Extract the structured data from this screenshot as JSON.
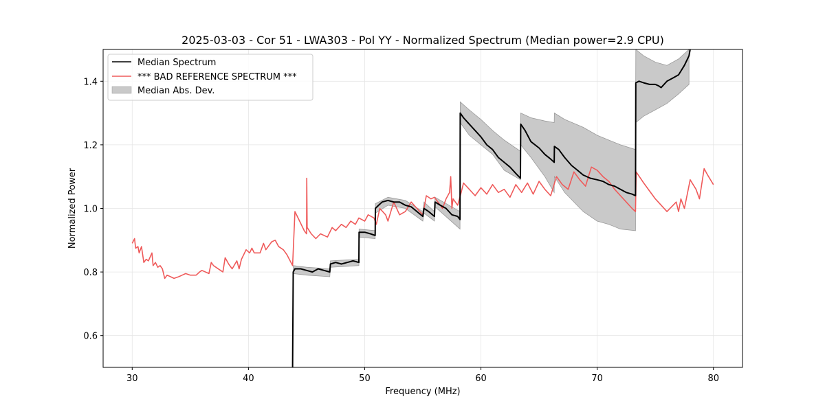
{
  "chart_data": {
    "type": "line",
    "title": "2025-03-03 - Cor 51 - LWA303 - Pol YY - Normalized Spectrum (Median power=2.9 CPU)",
    "xlabel": "Frequency (MHz)",
    "ylabel": "Normalized Power",
    "xlim": [
      27.5,
      82.5
    ],
    "ylim": [
      0.5,
      1.5
    ],
    "xticks": [
      30,
      40,
      50,
      60,
      70,
      80
    ],
    "yticks": [
      0.6,
      0.8,
      1.0,
      1.2,
      1.4
    ],
    "xtick_labels": [
      "30",
      "40",
      "50",
      "60",
      "70",
      "80"
    ],
    "ytick_labels": [
      "0.6",
      "0.8",
      "1.0",
      "1.2",
      "1.4"
    ],
    "grid": true,
    "legend_position": "top-left",
    "legend": [
      {
        "label": "Median Spectrum",
        "kind": "line",
        "color": "#000000"
      },
      {
        "label": "*** BAD REFERENCE SPECTRUM ***",
        "kind": "line",
        "color": "#ef5a5a"
      },
      {
        "label": "Median Abs. Dev.",
        "kind": "patch",
        "color": "#c9c9c9"
      }
    ],
    "series": [
      {
        "name": "*** BAD REFERENCE SPECTRUM ***",
        "color": "#ef5a5a",
        "x": [
          30.0,
          30.2,
          30.3,
          30.5,
          30.6,
          30.8,
          31.0,
          31.2,
          31.4,
          31.7,
          31.8,
          32.0,
          32.2,
          32.4,
          32.6,
          32.8,
          33.0,
          33.3,
          33.6,
          34.0,
          34.3,
          34.6,
          35.0,
          35.5,
          35.8,
          36.0,
          36.6,
          36.8,
          37.0,
          37.6,
          37.8,
          38.0,
          38.3,
          38.6,
          39.0,
          39.2,
          39.4,
          39.8,
          40.1,
          40.3,
          40.5,
          41.0,
          41.3,
          41.5,
          42.0,
          42.3,
          42.6,
          43.0,
          43.3,
          43.8,
          44.0,
          44.4,
          44.8,
          45.0,
          45.02,
          45.05,
          45.4,
          45.8,
          46.2,
          46.8,
          47.2,
          47.5,
          48.0,
          48.4,
          48.8,
          49.2,
          49.5,
          50.0,
          50.3,
          50.8,
          51.0,
          51.3,
          51.8,
          52.0,
          52.5,
          53.0,
          53.5,
          54.0,
          54.5,
          55.0,
          55.3,
          55.7,
          56.0,
          56.3,
          56.7,
          57.0,
          57.3,
          57.4,
          57.5,
          57.6,
          58.0,
          58.3,
          58.5,
          59.0,
          59.5,
          60.0,
          60.5,
          61.0,
          61.5,
          62.0,
          62.5,
          63.0,
          63.5,
          64.0,
          64.5,
          65.0,
          65.5,
          66.0,
          66.5,
          67.0,
          67.5,
          68.0,
          68.5,
          69.0,
          69.5,
          70.0,
          70.5,
          71.0,
          71.5,
          72.0,
          72.5,
          73.0,
          73.3,
          73.35,
          74.0,
          75.0,
          76.0,
          76.8,
          77.0,
          77.2,
          77.5,
          78.0,
          78.5,
          78.8,
          79.2,
          79.5,
          80.0
        ],
        "values": [
          0.89,
          0.905,
          0.875,
          0.88,
          0.86,
          0.88,
          0.83,
          0.84,
          0.835,
          0.86,
          0.82,
          0.83,
          0.815,
          0.82,
          0.81,
          0.78,
          0.79,
          0.785,
          0.78,
          0.785,
          0.79,
          0.795,
          0.79,
          0.79,
          0.8,
          0.805,
          0.795,
          0.83,
          0.82,
          0.805,
          0.8,
          0.845,
          0.825,
          0.81,
          0.835,
          0.81,
          0.84,
          0.87,
          0.86,
          0.875,
          0.86,
          0.86,
          0.89,
          0.87,
          0.895,
          0.9,
          0.88,
          0.87,
          0.855,
          0.82,
          0.99,
          0.96,
          0.93,
          0.92,
          1.095,
          0.94,
          0.92,
          0.905,
          0.92,
          0.91,
          0.94,
          0.93,
          0.95,
          0.94,
          0.96,
          0.95,
          0.97,
          0.96,
          0.98,
          0.97,
          0.95,
          1.0,
          0.98,
          0.96,
          1.02,
          0.98,
          0.99,
          1.02,
          1.0,
          0.98,
          1.04,
          1.03,
          1.035,
          1.02,
          1.0,
          1.03,
          1.05,
          1.1,
          1.0,
          1.03,
          1.01,
          1.05,
          1.08,
          1.06,
          1.04,
          1.065,
          1.045,
          1.075,
          1.05,
          1.06,
          1.035,
          1.075,
          1.05,
          1.08,
          1.045,
          1.085,
          1.06,
          1.04,
          1.1,
          1.075,
          1.06,
          1.115,
          1.09,
          1.07,
          1.13,
          1.12,
          1.1,
          1.085,
          1.06,
          1.04,
          1.02,
          1.0,
          0.99,
          1.115,
          1.08,
          1.03,
          0.99,
          1.02,
          0.99,
          1.03,
          1.0,
          1.09,
          1.06,
          1.03,
          1.125,
          1.105,
          1.075
        ]
      },
      {
        "name": "Median Spectrum",
        "color": "#000000",
        "x": [
          43.8,
          43.85,
          44.0,
          44.5,
          45.0,
          45.5,
          46.0,
          46.5,
          47.0,
          47.05,
          47.5,
          48.0,
          48.5,
          49.0,
          49.5,
          49.52,
          50.0,
          50.5,
          50.9,
          50.92,
          51.2,
          51.5,
          52.0,
          52.5,
          53.0,
          53.5,
          54.0,
          54.5,
          55.0,
          55.1,
          55.5,
          56.0,
          56.05,
          56.5,
          57.0,
          57.5,
          58.0,
          58.2,
          58.22,
          58.5,
          59.0,
          59.5,
          60.0,
          60.5,
          61.0,
          61.5,
          62.0,
          62.5,
          63.0,
          63.4,
          63.42,
          63.8,
          64.3,
          65.0,
          65.5,
          66.0,
          66.3,
          66.32,
          66.7,
          67.2,
          67.8,
          68.3,
          68.8,
          69.4,
          70.0,
          70.5,
          71.0,
          71.5,
          72.0,
          72.5,
          73.0,
          73.3,
          73.32,
          73.6,
          74.0,
          74.5,
          75.0,
          75.3,
          75.5,
          76.0,
          76.5,
          77.0,
          77.5,
          77.9,
          78.0
        ],
        "values": [
          0.5,
          0.8,
          0.81,
          0.81,
          0.805,
          0.8,
          0.81,
          0.805,
          0.8,
          0.825,
          0.83,
          0.825,
          0.83,
          0.835,
          0.83,
          0.925,
          0.925,
          0.92,
          0.915,
          1.0,
          1.01,
          1.02,
          1.025,
          1.02,
          1.02,
          1.01,
          1.005,
          0.99,
          0.975,
          1.0,
          0.99,
          0.975,
          1.02,
          1.01,
          1.0,
          0.98,
          0.975,
          0.965,
          1.3,
          1.285,
          1.265,
          1.245,
          1.225,
          1.2,
          1.185,
          1.16,
          1.145,
          1.13,
          1.11,
          1.095,
          1.265,
          1.245,
          1.21,
          1.19,
          1.17,
          1.155,
          1.145,
          1.195,
          1.185,
          1.16,
          1.135,
          1.12,
          1.105,
          1.095,
          1.09,
          1.085,
          1.075,
          1.07,
          1.06,
          1.05,
          1.045,
          1.04,
          1.395,
          1.4,
          1.395,
          1.39,
          1.39,
          1.385,
          1.38,
          1.4,
          1.41,
          1.42,
          1.45,
          1.48,
          1.5
        ]
      }
    ],
    "band": {
      "name": "Median Abs. Dev.",
      "color": "#c9c9c9",
      "x": [
        43.85,
        45.0,
        47.0,
        47.05,
        49.5,
        49.52,
        50.9,
        50.92,
        52.0,
        53.5,
        55.0,
        55.1,
        56.0,
        56.05,
        58.2,
        58.22,
        59.0,
        60.0,
        61.0,
        62.0,
        63.4,
        63.42,
        64.3,
        65.5,
        66.3,
        66.32,
        67.2,
        68.8,
        70.0,
        71.0,
        72.0,
        73.3,
        73.32,
        74.0,
        75.0,
        76.0,
        77.0,
        77.9
      ],
      "upper": [
        0.82,
        0.815,
        0.81,
        0.835,
        0.84,
        0.935,
        0.93,
        1.015,
        1.035,
        1.025,
        0.99,
        1.02,
        0.99,
        1.035,
        0.99,
        1.335,
        1.31,
        1.28,
        1.245,
        1.215,
        1.18,
        1.3,
        1.285,
        1.275,
        1.27,
        1.3,
        1.28,
        1.255,
        1.23,
        1.215,
        1.2,
        1.185,
        1.5,
        1.48,
        1.46,
        1.45,
        1.47,
        1.5
      ],
      "lower": [
        0.795,
        0.79,
        0.785,
        0.815,
        0.82,
        0.91,
        0.905,
        0.985,
        1.01,
        1.0,
        0.96,
        0.985,
        0.96,
        1.005,
        0.935,
        1.27,
        1.23,
        1.2,
        1.17,
        1.12,
        1.09,
        1.2,
        1.16,
        1.1,
        1.05,
        1.1,
        1.05,
        0.99,
        0.96,
        0.95,
        0.935,
        0.93,
        1.27,
        1.29,
        1.31,
        1.33,
        1.36,
        1.39
      ]
    }
  }
}
